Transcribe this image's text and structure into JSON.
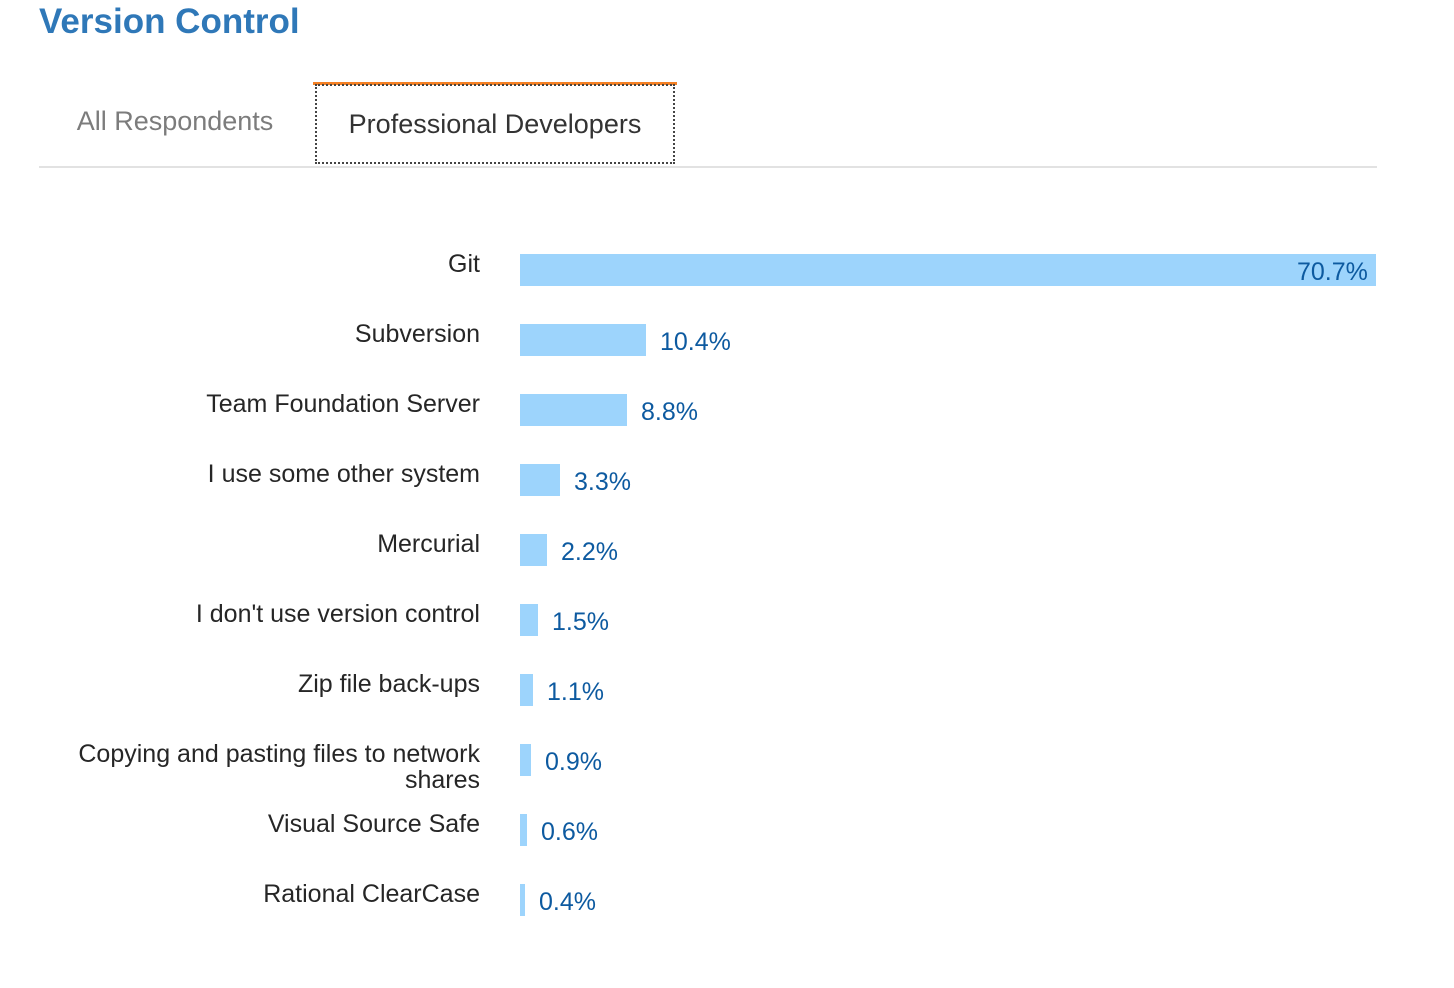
{
  "page": {
    "title": "Version Control"
  },
  "tabs": [
    {
      "label": "All Respondents",
      "active": false
    },
    {
      "label": "Professional Developers",
      "active": true
    }
  ],
  "colors": {
    "title": "#2f78b8",
    "bar": "#9dd4fc",
    "value_label": "#0d5aa0",
    "active_tab_accent": "#f48024"
  },
  "chart_data": {
    "type": "bar",
    "orientation": "horizontal",
    "categories": [
      "Git",
      "Subversion",
      "Team Foundation Server",
      "I use some other system",
      "Mercurial",
      "I don't use version control",
      "Zip file back-ups",
      "Copying and pasting files to network shares",
      "Visual Source Safe",
      "Rational ClearCase"
    ],
    "values": [
      70.7,
      10.4,
      8.8,
      3.3,
      2.2,
      1.5,
      1.1,
      0.9,
      0.6,
      0.4
    ],
    "value_labels": [
      "70.7%",
      "10.4%",
      "8.8%",
      "3.3%",
      "2.2%",
      "1.5%",
      "1.1%",
      "0.9%",
      "0.6%",
      "0.4%"
    ],
    "unit": "%",
    "title": "",
    "xlabel": "",
    "ylabel": "",
    "grid": false,
    "legend": false
  }
}
